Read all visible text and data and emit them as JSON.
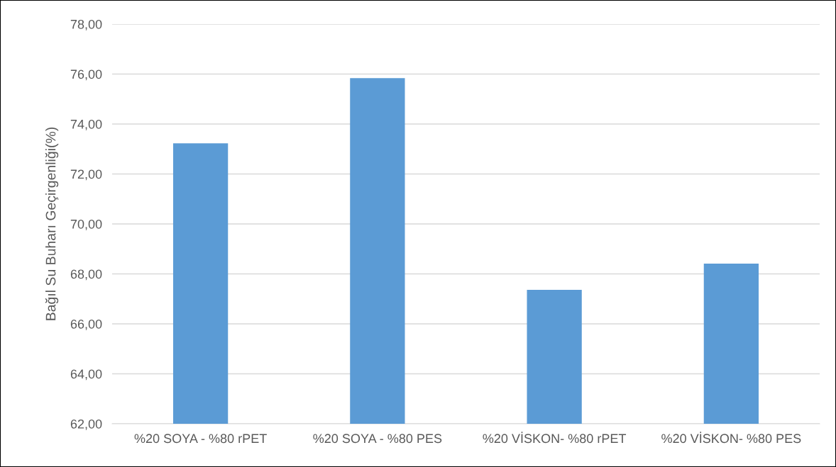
{
  "chart_data": {
    "type": "bar",
    "ylabel": "Bağıl Su Buharı Geçirgenliği(%)",
    "categories": [
      "%20 SOYA - %80 rPET",
      "%20 SOYA - %80 PES",
      "%20 VİSKON- %80 rPET",
      "%20 VİSKON- %80 PES"
    ],
    "values": [
      73.23,
      75.84,
      67.36,
      68.41
    ],
    "color": "#5b9bd5",
    "ylim": [
      62,
      78
    ],
    "yticks": [
      {
        "value": 62,
        "label": "62,00"
      },
      {
        "value": 64,
        "label": "64,00"
      },
      {
        "value": 66,
        "label": "66,00"
      },
      {
        "value": 68,
        "label": "68,00"
      },
      {
        "value": 70,
        "label": "70,00"
      },
      {
        "value": 72,
        "label": "72,00"
      },
      {
        "value": 74,
        "label": "74,00"
      },
      {
        "value": 76,
        "label": "76,00"
      },
      {
        "value": 78,
        "label": "78,00"
      }
    ],
    "grid": "y"
  }
}
